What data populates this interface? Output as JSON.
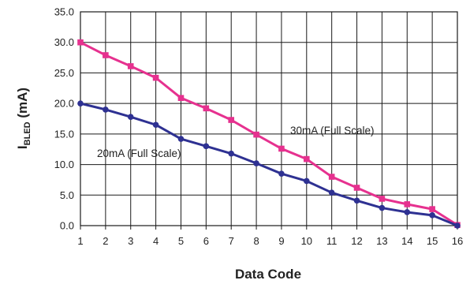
{
  "chart_data": {
    "type": "line",
    "xlabel": "Data Code",
    "ylabel": {
      "main": "I",
      "sub": "BLED",
      "unit": " (mA)"
    },
    "x": [
      1,
      2,
      3,
      4,
      5,
      6,
      7,
      8,
      9,
      10,
      11,
      12,
      13,
      14,
      15,
      16
    ],
    "xlim": [
      1,
      16
    ],
    "ylim": [
      0,
      35
    ],
    "xticks": [
      "1",
      "2",
      "3",
      "4",
      "5",
      "6",
      "7",
      "8",
      "9",
      "10",
      "11",
      "12",
      "13",
      "14",
      "15",
      "16"
    ],
    "yticks": [
      "0.0",
      "5.0",
      "10.0",
      "15.0",
      "20.0",
      "25.0",
      "30.0",
      "35.0"
    ],
    "grid": true,
    "series": [
      {
        "name": "30mA (Full Scale)",
        "color": "#e6318f",
        "marker": "square",
        "values": [
          30.0,
          27.9,
          26.1,
          24.2,
          20.9,
          19.2,
          17.3,
          14.9,
          12.6,
          10.9,
          8.0,
          6.2,
          4.4,
          3.5,
          2.7,
          0.1
        ]
      },
      {
        "name": "20mA (Full Scale)",
        "color": "#2e3192",
        "marker": "circle",
        "values": [
          20.0,
          19.0,
          17.8,
          16.5,
          14.2,
          13.0,
          11.8,
          10.2,
          8.5,
          7.3,
          5.4,
          4.1,
          2.9,
          2.2,
          1.7,
          0.0
        ]
      }
    ]
  }
}
